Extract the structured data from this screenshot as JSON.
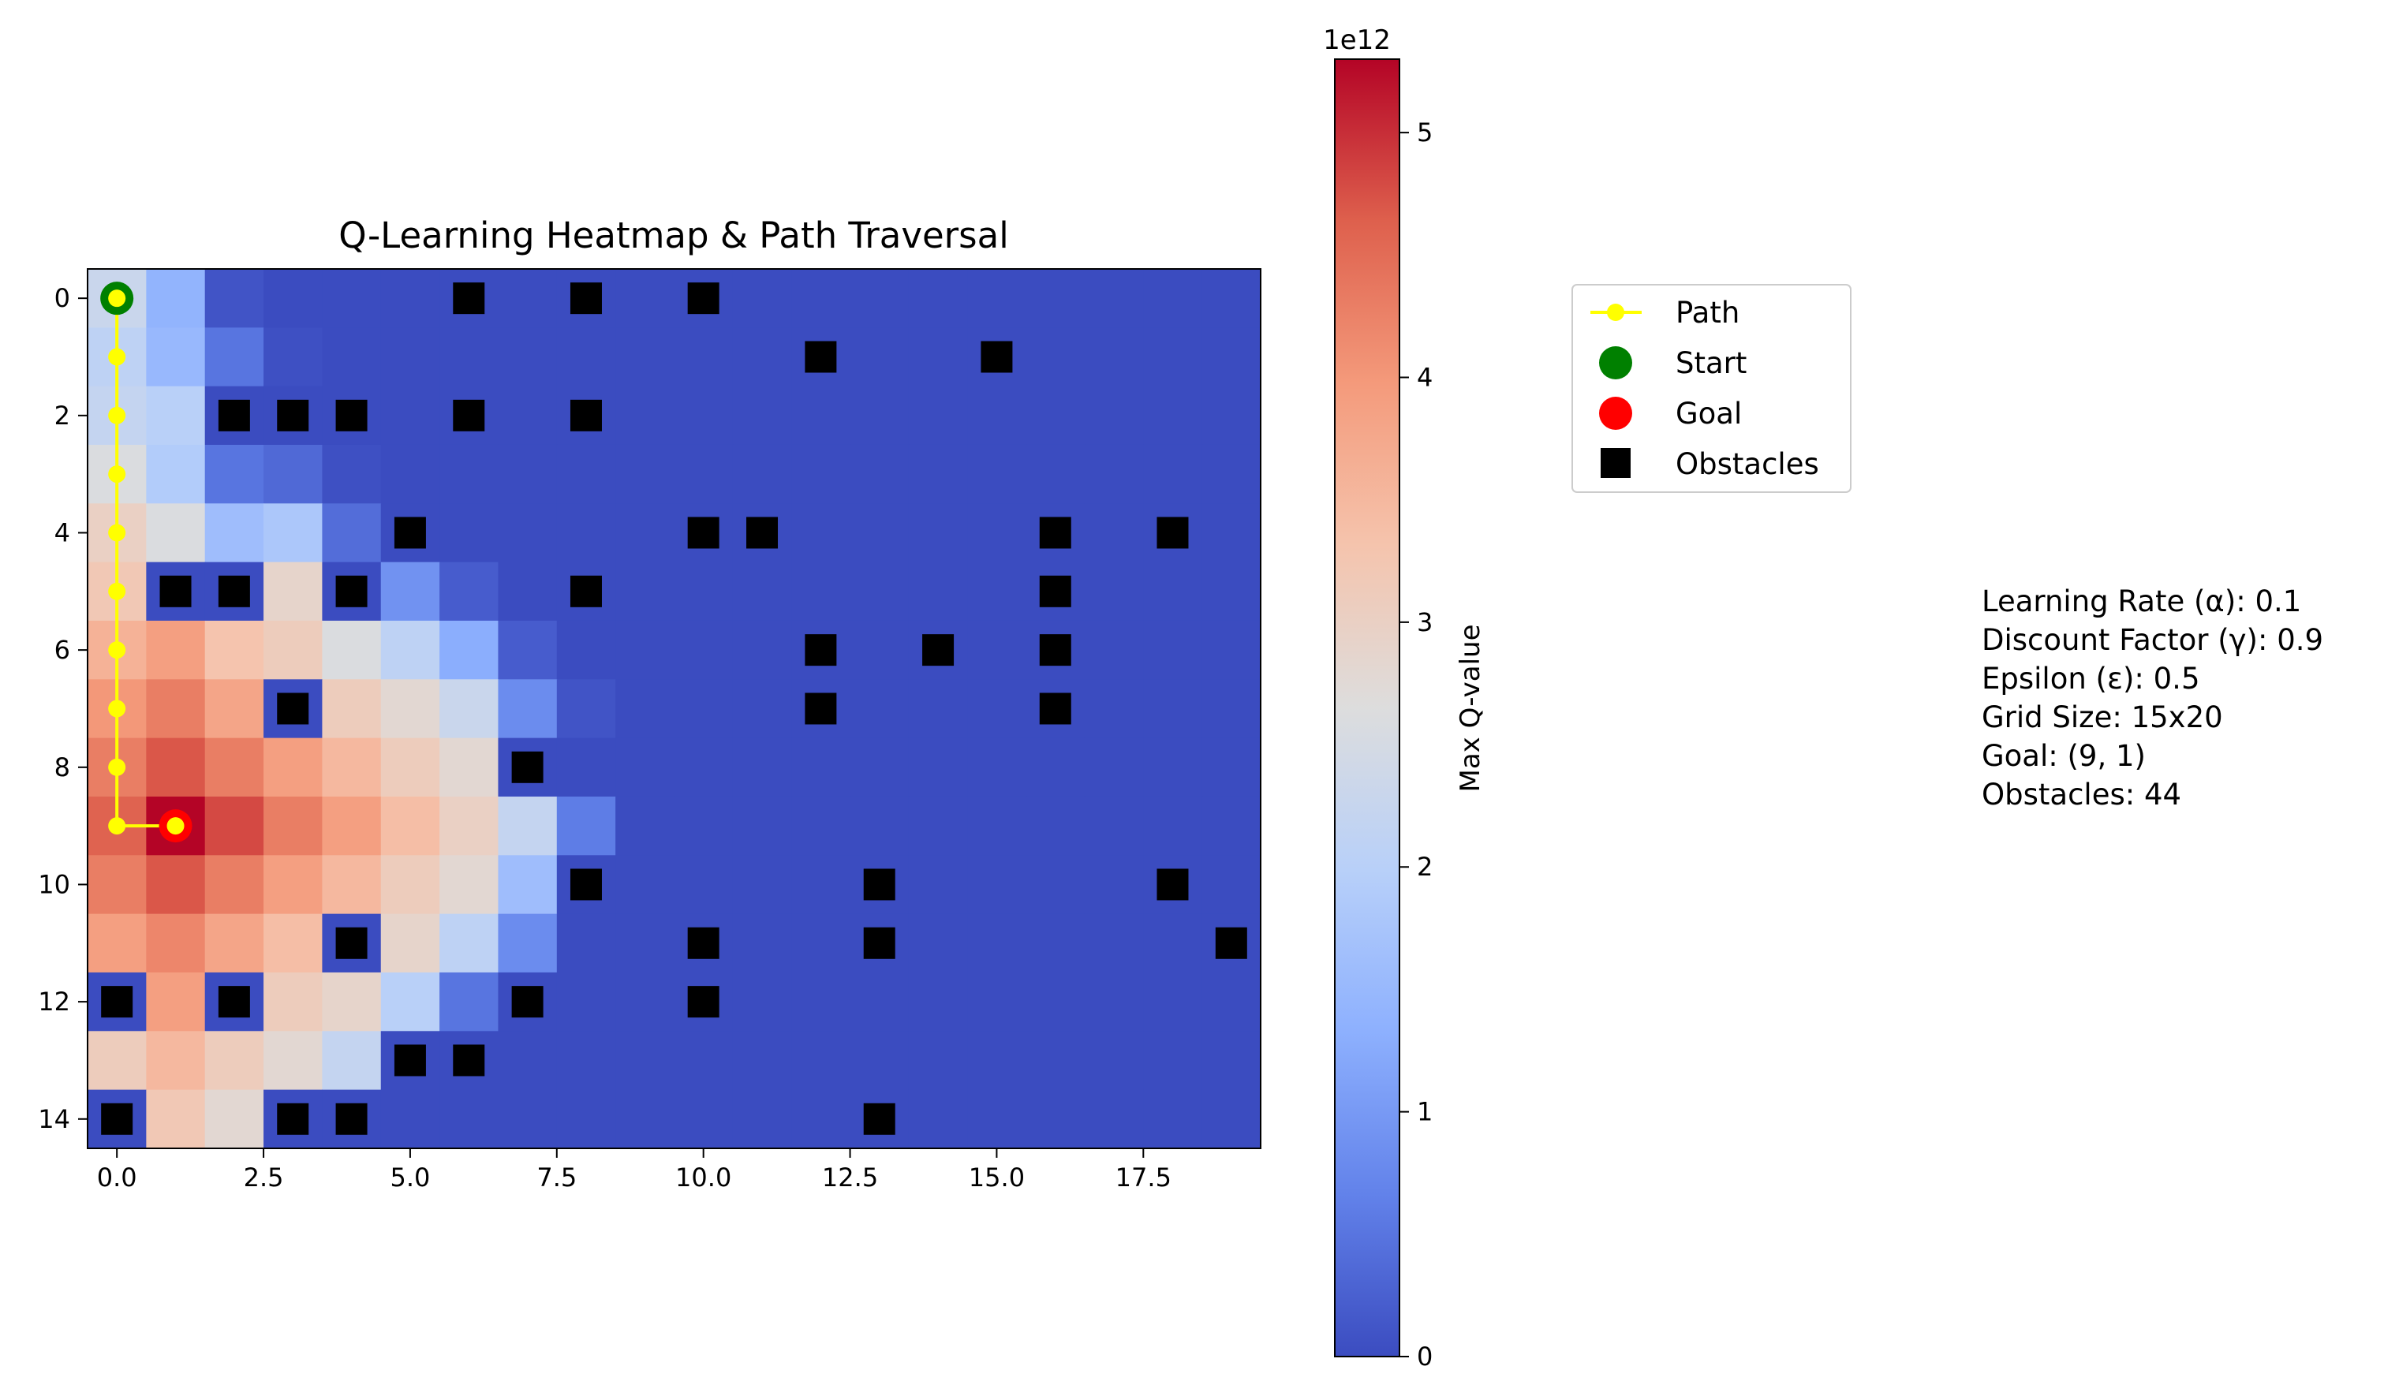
{
  "chart_data": {
    "type": "heatmap",
    "title": "Q-Learning Heatmap & Path Traversal",
    "grid": {
      "rows": 15,
      "cols": 20
    },
    "x_ticks": [
      "0.0",
      "2.5",
      "5.0",
      "7.5",
      "10.0",
      "12.5",
      "15.0",
      "17.5"
    ],
    "x_tick_values": [
      0,
      2.5,
      5,
      7.5,
      10,
      12.5,
      15,
      17.5
    ],
    "y_ticks": [
      "0",
      "2",
      "4",
      "6",
      "8",
      "10",
      "12",
      "14"
    ],
    "y_tick_values": [
      0,
      2,
      4,
      6,
      8,
      10,
      12,
      14
    ],
    "xlim": [
      -0.5,
      19.5
    ],
    "ylim": [
      14.5,
      -0.5
    ],
    "colormap": "coolwarm",
    "colorbar": {
      "label": "Max Q-value",
      "offset_text": "1e12",
      "ticks": [
        "0",
        "1",
        "2",
        "3",
        "4",
        "5"
      ],
      "range": [
        0,
        5.3
      ]
    },
    "values": [
      [
        2.3,
        1.4,
        0.1,
        0,
        0,
        0,
        0,
        0,
        0,
        0,
        0,
        0,
        0,
        0,
        0,
        0,
        0,
        0,
        0,
        0
      ],
      [
        2.1,
        1.5,
        0.5,
        0.05,
        0,
        0,
        0,
        0,
        0,
        0,
        0,
        0,
        0,
        0,
        0,
        0,
        0,
        0,
        0,
        0
      ],
      [
        2.2,
        2.0,
        0,
        0,
        0,
        0,
        0,
        0,
        0,
        0,
        0,
        0,
        0,
        0,
        0,
        0,
        0,
        0,
        0,
        0
      ],
      [
        2.6,
        1.9,
        0.5,
        0.35,
        0.05,
        0,
        0,
        0,
        0,
        0,
        0,
        0,
        0,
        0,
        0,
        0,
        0,
        0,
        0,
        0
      ],
      [
        3.0,
        2.6,
        1.6,
        1.8,
        0.4,
        0,
        0,
        0,
        0,
        0,
        0,
        0,
        0,
        0,
        0,
        0,
        0,
        0,
        0,
        0
      ],
      [
        3.2,
        0,
        0,
        2.9,
        0,
        0.9,
        0.2,
        0,
        0,
        0,
        0,
        0,
        0,
        0,
        0,
        0,
        0,
        0,
        0,
        0
      ],
      [
        3.6,
        3.9,
        3.3,
        3.1,
        2.6,
        2.1,
        1.3,
        0.2,
        0,
        0,
        0,
        0,
        0,
        0,
        0,
        0,
        0,
        0,
        0,
        0
      ],
      [
        4.0,
        4.3,
        3.8,
        0,
        3.1,
        2.8,
        2.3,
        0.8,
        0.1,
        0,
        0,
        0,
        0,
        0,
        0,
        0,
        0,
        0,
        0,
        0
      ],
      [
        4.3,
        4.7,
        4.3,
        3.9,
        3.5,
        3.1,
        2.8,
        0,
        0,
        0,
        0,
        0,
        0,
        0,
        0,
        0,
        0,
        0,
        0,
        0
      ],
      [
        4.6,
        5.3,
        4.8,
        4.3,
        3.9,
        3.4,
        3.0,
        2.2,
        0.6,
        0,
        0,
        0,
        0,
        0,
        0,
        0,
        0,
        0,
        0,
        0
      ],
      [
        4.3,
        4.7,
        4.3,
        3.9,
        3.5,
        3.1,
        2.8,
        1.6,
        0,
        0,
        0,
        0,
        0,
        0,
        0,
        0,
        0,
        0,
        0,
        0
      ],
      [
        3.9,
        4.2,
        3.8,
        3.4,
        0,
        2.9,
        2.1,
        0.8,
        0,
        0,
        0,
        0,
        0,
        0,
        0,
        0,
        0,
        0,
        0,
        0
      ],
      [
        0,
        3.9,
        0,
        3.1,
        2.9,
        2.0,
        0.5,
        0,
        0,
        0,
        0,
        0,
        0,
        0,
        0,
        0,
        0,
        0,
        0,
        0
      ],
      [
        3.1,
        3.5,
        3.1,
        2.8,
        2.2,
        0,
        0,
        0,
        0,
        0,
        0,
        0,
        0,
        0,
        0,
        0,
        0,
        0,
        0,
        0
      ],
      [
        0,
        3.2,
        2.8,
        0,
        0,
        0,
        0,
        0,
        0,
        0,
        0,
        0,
        0,
        0,
        0,
        0,
        0,
        0,
        0,
        0
      ]
    ],
    "path": [
      [
        0,
        0
      ],
      [
        1,
        0
      ],
      [
        2,
        0
      ],
      [
        3,
        0
      ],
      [
        4,
        0
      ],
      [
        5,
        0
      ],
      [
        6,
        0
      ],
      [
        7,
        0
      ],
      [
        8,
        0
      ],
      [
        9,
        0
      ],
      [
        9,
        1
      ]
    ],
    "start": [
      0,
      0
    ],
    "goal": [
      9,
      1
    ],
    "obstacles": [
      [
        0,
        6
      ],
      [
        0,
        8
      ],
      [
        0,
        10
      ],
      [
        1,
        12
      ],
      [
        1,
        15
      ],
      [
        2,
        2
      ],
      [
        2,
        3
      ],
      [
        2,
        4
      ],
      [
        2,
        6
      ],
      [
        2,
        8
      ],
      [
        4,
        5
      ],
      [
        4,
        10
      ],
      [
        4,
        11
      ],
      [
        4,
        16
      ],
      [
        4,
        18
      ],
      [
        5,
        1
      ],
      [
        5,
        2
      ],
      [
        5,
        4
      ],
      [
        5,
        8
      ],
      [
        5,
        16
      ],
      [
        6,
        12
      ],
      [
        6,
        14
      ],
      [
        6,
        16
      ],
      [
        7,
        3
      ],
      [
        7,
        12
      ],
      [
        7,
        16
      ],
      [
        8,
        7
      ],
      [
        10,
        8
      ],
      [
        10,
        13
      ],
      [
        10,
        18
      ],
      [
        11,
        4
      ],
      [
        11,
        10
      ],
      [
        11,
        13
      ],
      [
        11,
        19
      ],
      [
        12,
        0
      ],
      [
        12,
        2
      ],
      [
        12,
        7
      ],
      [
        12,
        10
      ],
      [
        13,
        5
      ],
      [
        13,
        6
      ],
      [
        14,
        0
      ],
      [
        14,
        3
      ],
      [
        14,
        4
      ],
      [
        14,
        13
      ]
    ],
    "legend": {
      "placement": "upper-left outside",
      "entries": [
        "Path",
        "Start",
        "Goal",
        "Obstacles"
      ]
    },
    "colors": {
      "path": "#ffff00",
      "start": "#008000",
      "goal": "#ff0000",
      "obstacle": "#000000"
    }
  },
  "info": {
    "lines": [
      "Learning Rate (α): 0.1",
      "Discount Factor (γ): 0.9",
      "Epsilon (ε): 0.5",
      "Grid Size: 15x20",
      "Goal: (9, 1)",
      "Obstacles: 44"
    ]
  }
}
